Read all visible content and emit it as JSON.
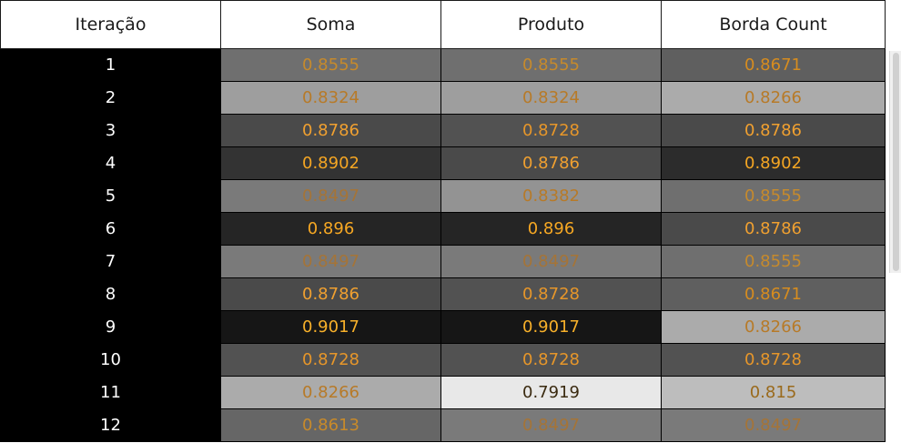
{
  "headers": [
    "Iteração",
    "Soma",
    "Produto",
    "Borda Count"
  ],
  "rows": [
    {
      "iter": "1",
      "soma": {
        "v": "0.8555",
        "bg": "#6f6f6f",
        "fg": "#c68a2c"
      },
      "produto": {
        "v": "0.8555",
        "bg": "#6f6f6f",
        "fg": "#c68a2c"
      },
      "borda": {
        "v": "0.8671",
        "bg": "#5f5f5f",
        "fg": "#d68c1f"
      }
    },
    {
      "iter": "2",
      "soma": {
        "v": "0.8324",
        "bg": "#9e9e9e",
        "fg": "#b77a28"
      },
      "produto": {
        "v": "0.8324",
        "bg": "#9e9e9e",
        "fg": "#b77a28"
      },
      "borda": {
        "v": "0.8266",
        "bg": "#ababab",
        "fg": "#b77a28"
      }
    },
    {
      "iter": "3",
      "soma": {
        "v": "0.8786",
        "bg": "#4a4a4a",
        "fg": "#f0a030"
      },
      "produto": {
        "v": "0.8728",
        "bg": "#525252",
        "fg": "#e6962a"
      },
      "borda": {
        "v": "0.8786",
        "bg": "#4a4a4a",
        "fg": "#f0a030"
      }
    },
    {
      "iter": "4",
      "soma": {
        "v": "0.8902",
        "bg": "#333333",
        "fg": "#f5a623"
      },
      "produto": {
        "v": "0.8786",
        "bg": "#4a4a4a",
        "fg": "#f0a030"
      },
      "borda": {
        "v": "0.8902",
        "bg": "#2c2c2c",
        "fg": "#f5a623"
      }
    },
    {
      "iter": "5",
      "soma": {
        "v": "0.8497",
        "bg": "#7a7a7a",
        "fg": "#a57437"
      },
      "produto": {
        "v": "0.8382",
        "bg": "#939393",
        "fg": "#b77a28"
      },
      "borda": {
        "v": "0.8555",
        "bg": "#6f6f6f",
        "fg": "#c68a2c"
      }
    },
    {
      "iter": "6",
      "soma": {
        "v": "0.896",
        "bg": "#252525",
        "fg": "#f7a823"
      },
      "produto": {
        "v": "0.896",
        "bg": "#252525",
        "fg": "#f7a823"
      },
      "borda": {
        "v": "0.8786",
        "bg": "#4a4a4a",
        "fg": "#f0a030"
      }
    },
    {
      "iter": "7",
      "soma": {
        "v": "0.8497",
        "bg": "#7a7a7a",
        "fg": "#a57437"
      },
      "produto": {
        "v": "0.8497",
        "bg": "#7a7a7a",
        "fg": "#a57437"
      },
      "borda": {
        "v": "0.8555",
        "bg": "#6f6f6f",
        "fg": "#c68a2c"
      }
    },
    {
      "iter": "8",
      "soma": {
        "v": "0.8786",
        "bg": "#4a4a4a",
        "fg": "#f0a030"
      },
      "produto": {
        "v": "0.8728",
        "bg": "#525252",
        "fg": "#e6962a"
      },
      "borda": {
        "v": "0.8671",
        "bg": "#5f5f5f",
        "fg": "#d68c1f"
      }
    },
    {
      "iter": "9",
      "soma": {
        "v": "0.9017",
        "bg": "#161616",
        "fg": "#f7b02a"
      },
      "produto": {
        "v": "0.9017",
        "bg": "#161616",
        "fg": "#f7b02a"
      },
      "borda": {
        "v": "0.8266",
        "bg": "#ababab",
        "fg": "#b77a28"
      }
    },
    {
      "iter": "10",
      "soma": {
        "v": "0.8728",
        "bg": "#525252",
        "fg": "#e6962a"
      },
      "produto": {
        "v": "0.8728",
        "bg": "#525252",
        "fg": "#e6962a"
      },
      "borda": {
        "v": "0.8728",
        "bg": "#525252",
        "fg": "#e6962a"
      }
    },
    {
      "iter": "11",
      "soma": {
        "v": "0.8266",
        "bg": "#ababab",
        "fg": "#b77a28"
      },
      "produto": {
        "v": "0.7919",
        "bg": "#e8e8e8",
        "fg": "#3a2a10"
      },
      "borda": {
        "v": "0.815",
        "bg": "#bdbdbd",
        "fg": "#9a6a1c"
      }
    },
    {
      "iter": "12",
      "soma": {
        "v": "0.8613",
        "bg": "#666666",
        "fg": "#c88a2a"
      },
      "produto": {
        "v": "0.8497",
        "bg": "#7a7a7a",
        "fg": "#a57437"
      },
      "borda": {
        "v": "0.8497",
        "bg": "#7a7a7a",
        "fg": "#a57437"
      }
    }
  ]
}
